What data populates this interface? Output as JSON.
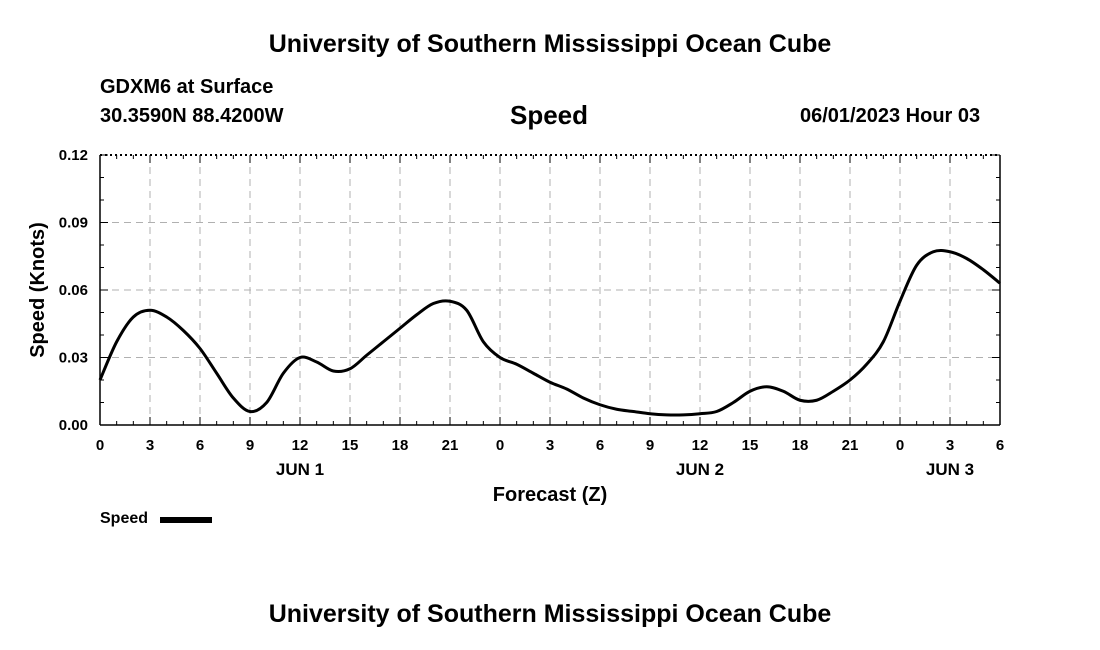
{
  "header": {
    "title_top": "University of Southern Mississippi Ocean Cube",
    "station": "GDXM6 at Surface",
    "coords": "30.3590N  88.4200W",
    "variable": "Speed",
    "datetime": "06/01/2023 Hour 03",
    "title_bottom": "University of Southern Mississippi Ocean Cube"
  },
  "legend": {
    "label": "Speed",
    "color": "#000000"
  },
  "chart_data": {
    "type": "line",
    "title": "Speed",
    "xlabel": "Forecast (Z)",
    "ylabel": "Speed (Knots)",
    "xlim": [
      0,
      54
    ],
    "ylim": [
      0,
      0.12
    ],
    "grid": true,
    "legend_position": "bottom-left",
    "x_tick_values": [
      0,
      3,
      6,
      9,
      12,
      15,
      18,
      21,
      24,
      27,
      30,
      33,
      36,
      39,
      42,
      45,
      48,
      51,
      54
    ],
    "x_tick_labels": [
      "0",
      "3",
      "6",
      "9",
      "12",
      "15",
      "18",
      "21",
      "0",
      "3",
      "6",
      "9",
      "12",
      "15",
      "18",
      "21",
      "0",
      "3",
      "6"
    ],
    "y_tick_values": [
      0,
      0.03,
      0.06,
      0.09,
      0.12
    ],
    "y_tick_labels": [
      "0.00",
      "0.03",
      "0.06",
      "0.09",
      "0.12"
    ],
    "date_labels": [
      {
        "x": 12,
        "label": "JUN 1"
      },
      {
        "x": 36,
        "label": "JUN 2"
      },
      {
        "x": 51,
        "label": "JUN 3"
      }
    ],
    "series": [
      {
        "name": "Speed",
        "color": "#000000",
        "x": [
          0,
          1,
          2,
          3,
          4,
          5,
          6,
          7,
          8,
          9,
          10,
          11,
          12,
          13,
          14,
          15,
          16,
          17,
          18,
          19,
          20,
          21,
          22,
          23,
          24,
          25,
          26,
          27,
          28,
          29,
          30,
          31,
          32,
          33,
          34,
          35,
          36,
          37,
          38,
          39,
          40,
          41,
          42,
          43,
          44,
          45,
          46,
          47,
          48,
          49,
          50,
          51,
          52,
          53,
          54
        ],
        "values": [
          0.02,
          0.037,
          0.048,
          0.051,
          0.048,
          0.042,
          0.034,
          0.023,
          0.012,
          0.006,
          0.01,
          0.023,
          0.03,
          0.028,
          0.024,
          0.025,
          0.031,
          0.037,
          0.043,
          0.049,
          0.054,
          0.055,
          0.051,
          0.037,
          0.03,
          0.027,
          0.023,
          0.019,
          0.016,
          0.012,
          0.009,
          0.007,
          0.006,
          0.005,
          0.0045,
          0.0045,
          0.005,
          0.006,
          0.01,
          0.015,
          0.017,
          0.015,
          0.011,
          0.011,
          0.015,
          0.02,
          0.027,
          0.037,
          0.055,
          0.071,
          0.077,
          0.077,
          0.074,
          0.069,
          0.063
        ]
      }
    ]
  }
}
